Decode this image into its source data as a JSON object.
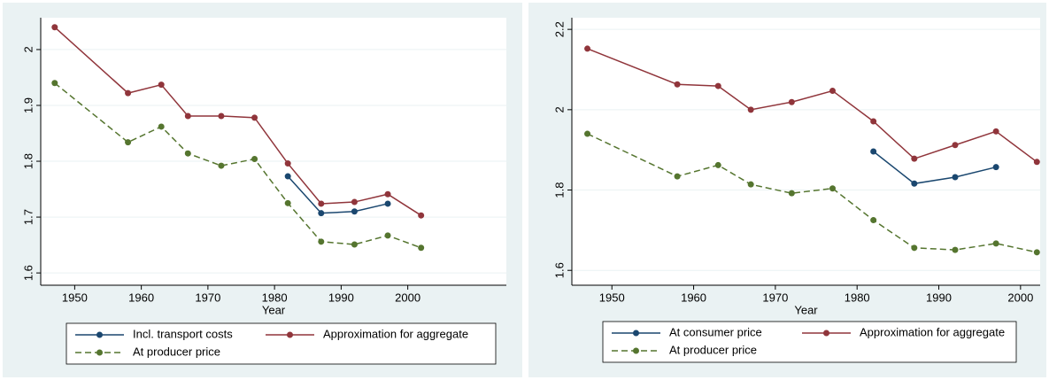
{
  "chart_data": [
    {
      "type": "line",
      "x_label": "Year",
      "x": [
        1947,
        1958,
        1963,
        1967,
        1972,
        1977,
        1982,
        1987,
        1992,
        1997,
        2002
      ],
      "xlim": [
        1944.9,
        2014.8
      ],
      "xticks": [
        1950,
        1960,
        1970,
        1980,
        1990,
        2000
      ],
      "ylim": [
        1.578,
        2.057
      ],
      "yticks": [
        1.6,
        1.7,
        1.8,
        1.9,
        2
      ],
      "grid": true,
      "series": [
        {
          "name": "Incl. transport costs",
          "color": "#1a476f",
          "dash": false,
          "values": [
            null,
            null,
            null,
            null,
            null,
            null,
            1.773,
            1.707,
            1.71,
            1.724,
            null
          ]
        },
        {
          "name": "Approximation for aggregate",
          "color": "#90353b",
          "dash": false,
          "values": [
            2.04,
            1.922,
            1.937,
            1.881,
            1.881,
            1.878,
            1.796,
            1.724,
            1.727,
            1.741,
            1.703
          ]
        },
        {
          "name": "At producer price",
          "color": "#55752f",
          "dash": true,
          "values": [
            1.94,
            1.834,
            1.862,
            1.814,
            1.792,
            1.804,
            1.725,
            1.656,
            1.651,
            1.667,
            1.645
          ]
        }
      ]
    },
    {
      "type": "line",
      "x_label": "Year",
      "x": [
        1947,
        1958,
        1963,
        1967,
        1972,
        1977,
        1982,
        1987,
        1992,
        1997,
        2002
      ],
      "xlim": [
        1945.1,
        2002.4
      ],
      "xticks": [
        1950,
        1960,
        1970,
        1980,
        1990,
        2000
      ],
      "ylim": [
        1.563,
        2.229
      ],
      "yticks": [
        1.6,
        1.8,
        2,
        2.2
      ],
      "grid": true,
      "series": [
        {
          "name": "At consumer price",
          "color": "#1a476f",
          "dash": false,
          "values": [
            null,
            null,
            null,
            null,
            null,
            null,
            1.896,
            1.816,
            1.832,
            1.857,
            null
          ]
        },
        {
          "name": "Approximation for aggregate",
          "color": "#90353b",
          "dash": false,
          "values": [
            2.152,
            2.063,
            2.059,
            2.0,
            2.019,
            2.047,
            1.971,
            1.878,
            1.912,
            1.946,
            1.87
          ]
        },
        {
          "name": "At producer price",
          "color": "#55752f",
          "dash": true,
          "values": [
            1.94,
            1.834,
            1.862,
            1.814,
            1.792,
            1.804,
            1.725,
            1.656,
            1.651,
            1.667,
            1.645
          ]
        }
      ]
    }
  ]
}
